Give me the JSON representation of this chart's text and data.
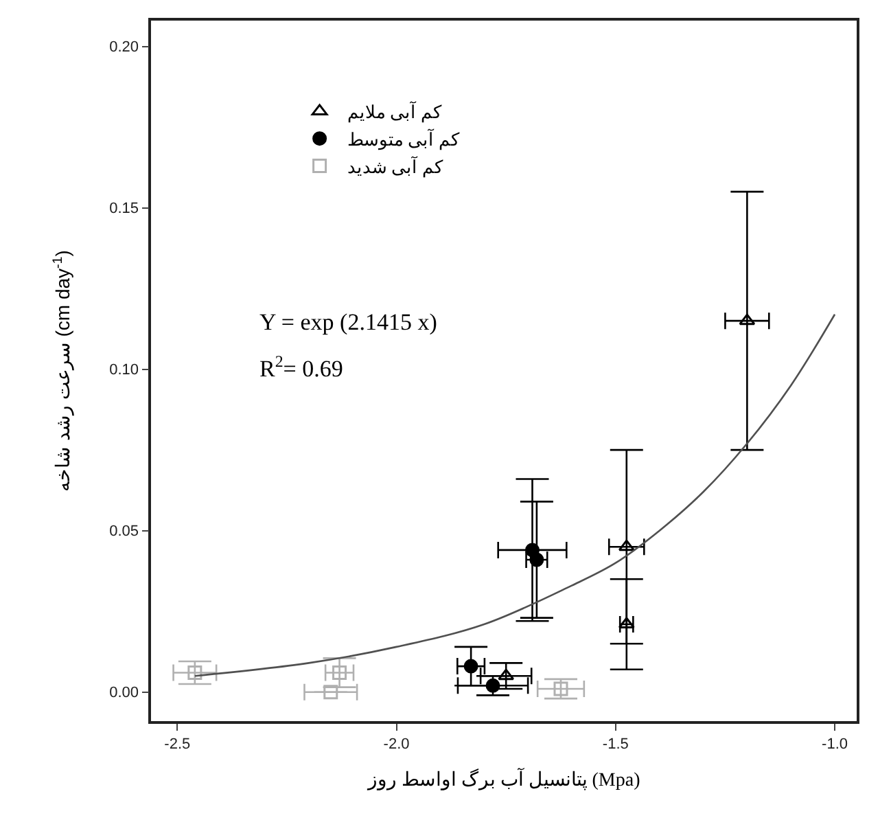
{
  "chart_data": {
    "type": "scatter",
    "xlabel": "پتانسیل آب برگ اواسط روز (Mpa)",
    "ylabel": "سرعت رشد شاخه (cm day$^{-1}$)",
    "xlim": [
      -2.56,
      -0.95
    ],
    "ylim": [
      -0.009,
      0.208
    ],
    "xticks": [
      {
        "value": -2.5,
        "label": "-2.5"
      },
      {
        "value": -2.0,
        "label": "-2.0"
      },
      {
        "value": -1.5,
        "label": "-1.5"
      },
      {
        "value": -1.0,
        "label": "-1.0"
      }
    ],
    "yticks": [
      {
        "value": 0,
        "label": "0.00"
      },
      {
        "value": 0.05,
        "label": "0.05"
      },
      {
        "value": 0.1,
        "label": "0.10"
      },
      {
        "value": 0.15,
        "label": "0.15"
      },
      {
        "value": 0.2,
        "label": "0.20"
      }
    ],
    "legend": "top left",
    "series": [
      {
        "name": "کم آبی ملایم",
        "color": "#000000",
        "marker": "triangle",
        "x": [
          -1.2,
          -1.475,
          -1.475,
          -1.75
        ],
        "values": [
          0.115,
          0.045,
          0.021,
          0.005
        ],
        "errors": [
          0.04,
          0.03,
          0.014,
          0.004
        ],
        "xerrors": [
          0.05,
          0.04,
          0.015,
          0.058
        ]
      },
      {
        "name": "کم آبی متوسط",
        "color": "#000000",
        "marker": "circle",
        "x": [
          -1.69,
          -1.68,
          -1.83,
          -1.78
        ],
        "values": [
          0.044,
          0.041,
          0.008,
          0.002
        ],
        "errors": [
          0.022,
          0.018,
          0.006,
          0.003
        ],
        "xerrors": [
          0.078,
          0.024,
          0.031,
          0.08
        ]
      },
      {
        "name": "کم آبی شدید",
        "color": "#b0b0b0",
        "marker": "square",
        "x": [
          -2.46,
          -2.13,
          -2.15,
          -1.625
        ],
        "values": [
          0.006,
          0.006,
          0.0,
          0.001
        ],
        "errors": [
          0.0035,
          0.0045,
          null,
          0.003
        ],
        "xerrors": [
          0.049,
          0.032,
          0.06,
          0.053
        ]
      },
      {
        "type": "line",
        "color": "#505050",
        "line_style": "solid",
        "x": [
          -2.46,
          -2.2,
          -2.0,
          -1.8,
          -1.6,
          -1.5,
          -1.4,
          -1.3,
          -1.2,
          -1.1,
          -1.0
        ],
        "values": [
          0.005,
          0.009,
          0.014,
          0.021,
          0.033,
          0.04,
          0.05,
          0.062,
          0.077,
          0.095,
          0.117
        ]
      }
    ],
    "annotations": [
      "Y = exp (2.1415 x)",
      "R$^{2}$= 0.69"
    ]
  }
}
